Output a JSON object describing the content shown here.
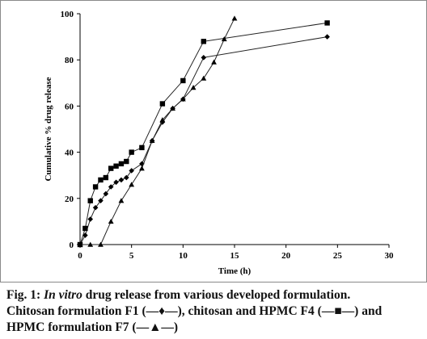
{
  "chart_data": {
    "type": "line",
    "xlabel": "Time (h)",
    "ylabel": "Cumulative % drug release",
    "xlim": [
      0,
      30
    ],
    "ylim": [
      0,
      100
    ],
    "xticks": [
      0,
      5,
      10,
      15,
      20,
      25,
      30
    ],
    "yticks": [
      0,
      20,
      40,
      60,
      80,
      100
    ],
    "grid": false,
    "legend": "none",
    "series": [
      {
        "name": "F1",
        "marker": "diamond",
        "x": [
          0,
          0.5,
          1,
          1.5,
          2,
          2.5,
          3,
          3.5,
          4,
          4.5,
          5,
          6,
          7,
          8,
          9,
          10,
          12,
          24
        ],
        "y": [
          0,
          4,
          11,
          16,
          19,
          22,
          25,
          27,
          28,
          29,
          32,
          35,
          45,
          53,
          59,
          63,
          81,
          90
        ]
      },
      {
        "name": "F4",
        "marker": "square",
        "x": [
          0,
          0.5,
          1,
          1.5,
          2,
          2.5,
          3,
          3.5,
          4,
          4.5,
          5,
          6,
          8,
          10,
          12,
          24
        ],
        "y": [
          0,
          7,
          19,
          25,
          28,
          29,
          33,
          34,
          35,
          36,
          40,
          42,
          61,
          71,
          88,
          96
        ]
      },
      {
        "name": "F7",
        "marker": "triangle",
        "x": [
          0,
          1,
          2,
          3,
          4,
          5,
          6,
          7,
          8,
          9,
          10,
          11,
          12,
          13,
          14,
          15
        ],
        "y": [
          0,
          0,
          0,
          10,
          19,
          26,
          33,
          45,
          54,
          59,
          63,
          68,
          72,
          79,
          89,
          98
        ]
      }
    ]
  },
  "caption": {
    "fig_label": "Fig. 1: ",
    "italic_term": "In vitro",
    "line1_rest": " drug release from various developed formulation.",
    "line2": "Chitosan formulation F1 (—♦—), chitosan and HPMC F4 (—■—) and",
    "line3": "HPMC formulation F7 (—▲—)"
  }
}
